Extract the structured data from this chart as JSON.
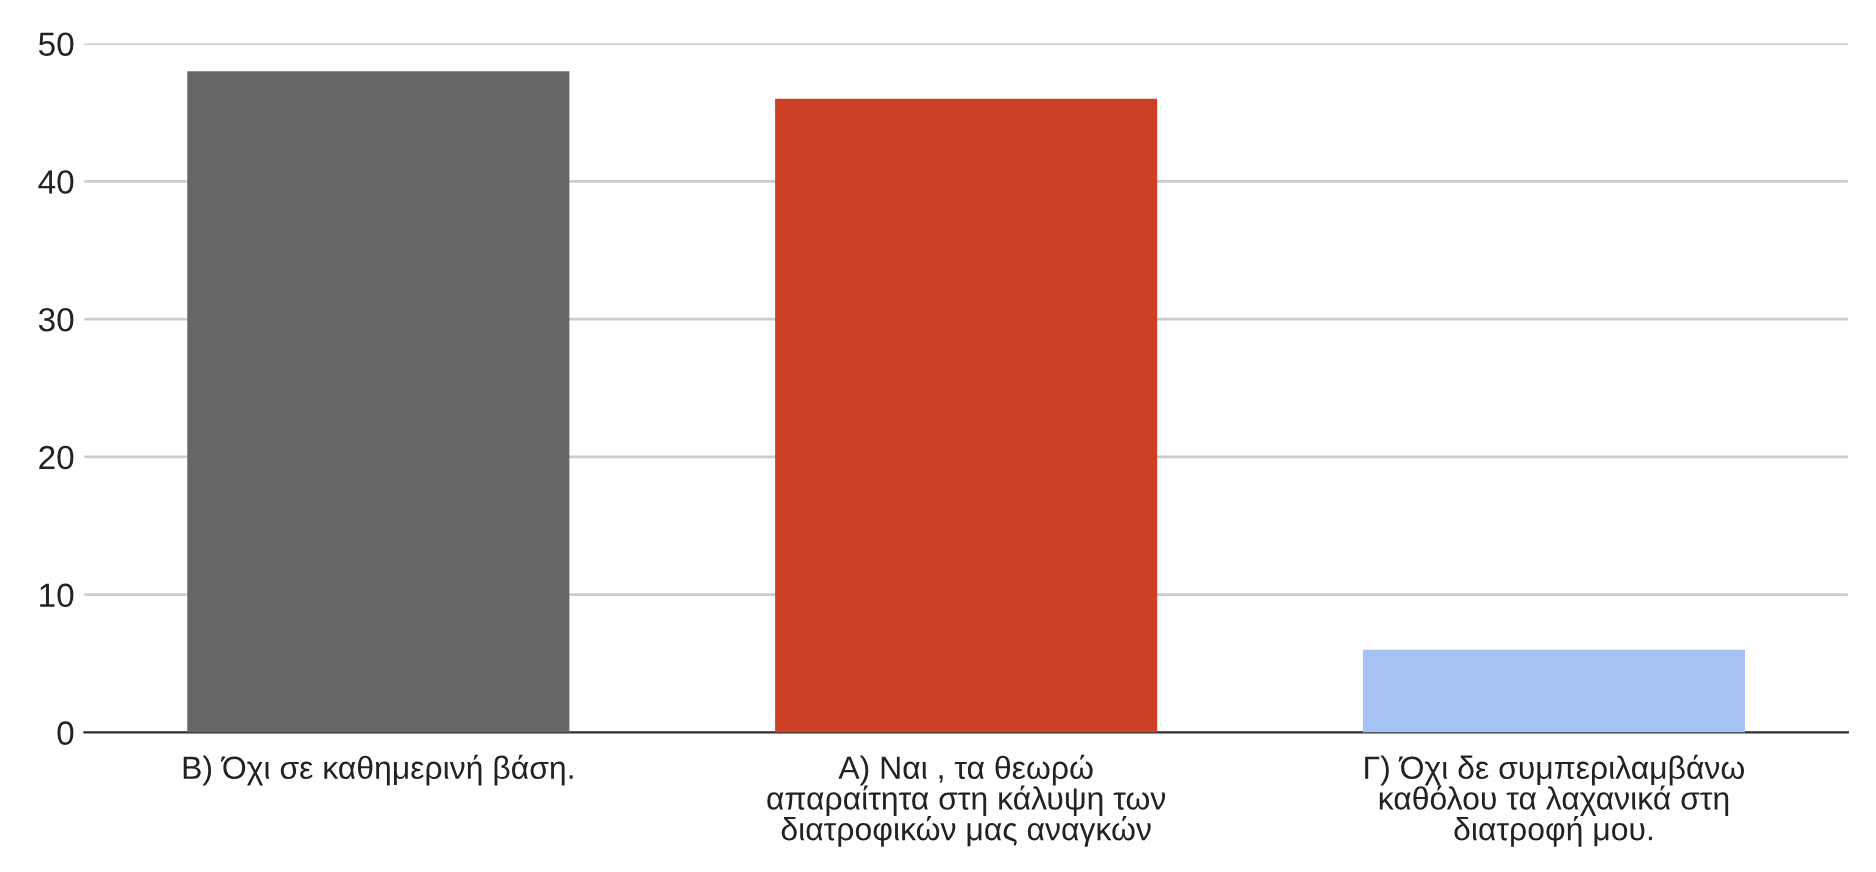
{
  "chart_data": {
    "type": "bar",
    "categories": [
      "Β) Όχι σε καθημερινή βάση.",
      "Α) Ναι , τα θεωρώ\nαπαραίτητα στη κάλυψη των\nδιατροφικών μας αναγκών",
      "Γ) Όχι δε συμπεριλαμβάνω\nκαθόλου τα λαχανικά στη\nδιατροφή μου."
    ],
    "values": [
      48,
      46,
      6
    ],
    "colors": [
      "#666666",
      "#cc4125",
      "#a4c2f4"
    ],
    "ylim": [
      0,
      50
    ],
    "yticks": [
      0,
      10,
      20,
      30,
      40,
      50
    ],
    "grid": "y"
  }
}
